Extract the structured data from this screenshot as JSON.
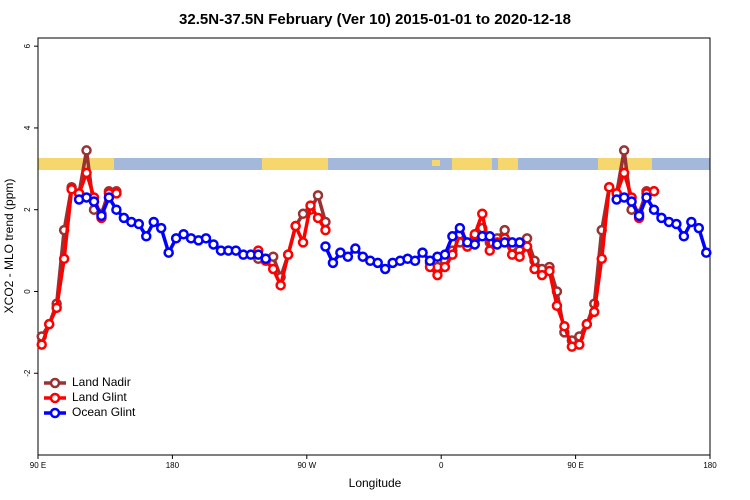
{
  "chart_data": {
    "type": "line",
    "title": "32.5N-37.5N February (Ver 10)   2015-01-01 to 2020-12-18",
    "xlabel": "Longitude",
    "ylabel": "XCO2 - MLO trend (ppm)",
    "x": [
      92.5,
      97.5,
      102.5,
      107.5,
      112.5,
      117.5,
      122.5,
      127.5,
      132.5,
      137.5,
      142.5,
      147.5,
      152.5,
      157.5,
      162.5,
      167.5,
      172.5,
      177.5,
      182.5,
      187.5,
      192.5,
      197.5,
      202.5,
      207.5,
      212.5,
      217.5,
      222.5,
      227.5,
      232.5,
      237.5,
      242.5,
      247.5,
      252.5,
      257.5,
      262.5,
      267.5,
      272.5,
      277.5,
      282.5,
      287.5,
      292.5,
      297.5,
      302.5,
      307.5,
      312.5,
      317.5,
      322.5,
      327.5,
      332.5,
      337.5,
      342.5,
      347.5,
      352.5,
      357.5,
      362.5,
      367.5,
      372.5,
      377.5,
      382.5,
      387.5,
      392.5,
      397.5,
      402.5,
      407.5,
      412.5,
      417.5,
      422.5,
      427.5,
      432.5,
      437.5,
      442.5,
      447.5,
      452.5,
      457.5,
      462.5,
      467.5,
      472.5,
      477.5,
      482.5,
      487.5,
      492.5,
      497.5,
      502.5,
      507.5,
      512.5,
      517.5,
      522.5,
      527.5,
      532.5,
      537.5
    ],
    "series": [
      {
        "name": "Land Nadir",
        "color": "#993333",
        "values": [
          -1.1,
          -0.8,
          -0.3,
          1.5,
          2.55,
          2.4,
          3.45,
          2.0,
          1.9,
          2.45,
          2.45,
          null,
          null,
          null,
          null,
          null,
          null,
          null,
          null,
          null,
          null,
          null,
          null,
          null,
          null,
          null,
          null,
          null,
          null,
          0.8,
          0.8,
          0.85,
          0.35,
          0.9,
          1.6,
          1.9,
          2.0,
          2.35,
          1.7,
          null,
          null,
          null,
          null,
          null,
          null,
          null,
          null,
          null,
          null,
          null,
          null,
          null,
          0.7,
          0.6,
          0.75,
          1.0,
          1.2,
          1.1,
          1.35,
          1.55,
          1.2,
          1.3,
          1.5,
          1.1,
          1.0,
          1.3,
          0.75,
          0.55,
          0.6,
          0.0,
          -1.0,
          -1.2,
          -1.1,
          -0.8,
          -0.3,
          1.5,
          2.55,
          2.4,
          3.45,
          2.0,
          1.9,
          2.45,
          2.45,
          null,
          null,
          null,
          null,
          null,
          null,
          null
        ]
      },
      {
        "name": "Land Glint",
        "color": "#ff0000",
        "values": [
          -1.3,
          -0.8,
          -0.4,
          0.8,
          2.5,
          2.4,
          2.9,
          2.3,
          1.8,
          2.4,
          2.4,
          null,
          null,
          null,
          null,
          null,
          null,
          null,
          null,
          null,
          null,
          null,
          null,
          null,
          null,
          null,
          null,
          null,
          null,
          1.0,
          0.75,
          0.55,
          0.15,
          0.9,
          1.6,
          1.2,
          2.1,
          1.8,
          1.5,
          null,
          null,
          null,
          null,
          null,
          null,
          null,
          null,
          null,
          null,
          null,
          null,
          null,
          0.6,
          0.4,
          0.6,
          0.9,
          1.4,
          1.1,
          1.4,
          1.9,
          1.0,
          1.2,
          1.3,
          0.9,
          0.85,
          1.1,
          0.55,
          0.4,
          0.5,
          -0.35,
          -0.85,
          -1.35,
          -1.3,
          -0.8,
          -0.5,
          0.8,
          2.55,
          2.4,
          2.9,
          2.3,
          1.8,
          2.4,
          2.45,
          null,
          null,
          null,
          null,
          null,
          null,
          null
        ]
      },
      {
        "name": "Ocean Glint",
        "color": "#0000ff",
        "values": [
          null,
          null,
          null,
          null,
          null,
          2.25,
          2.3,
          2.2,
          1.85,
          2.3,
          2.0,
          1.8,
          1.7,
          1.65,
          1.35,
          1.7,
          1.55,
          0.95,
          1.3,
          1.4,
          1.3,
          1.25,
          1.3,
          1.15,
          1.0,
          1.0,
          1.0,
          0.9,
          0.9,
          0.9,
          0.8,
          null,
          null,
          null,
          null,
          null,
          null,
          null,
          1.1,
          0.7,
          0.95,
          0.85,
          1.05,
          0.85,
          0.75,
          0.7,
          0.55,
          0.7,
          0.75,
          0.8,
          0.75,
          0.95,
          0.75,
          0.85,
          0.9,
          1.35,
          1.55,
          1.2,
          1.15,
          1.35,
          1.35,
          1.15,
          1.2,
          1.2,
          1.2,
          null,
          null,
          null,
          null,
          null,
          null,
          null,
          null,
          null,
          null,
          null,
          null,
          2.25,
          2.3,
          2.2,
          1.85,
          2.3,
          2.0,
          1.8,
          1.7,
          1.65,
          1.35,
          1.7,
          1.55,
          0.95
        ]
      }
    ],
    "xlim": [
      90,
      540
    ],
    "xticks": [
      {
        "value": 90,
        "label": "90 E"
      },
      180,
      {
        "value": 270,
        "label": "90 W"
      },
      {
        "value": 360,
        "label": "0"
      },
      {
        "value": 450,
        "label": "90 E"
      },
      {
        "value": 540,
        "label": "180"
      }
    ],
    "ylim": [
      -4,
      6.2
    ],
    "yticks": [
      -2,
      0,
      2,
      4,
      6
    ],
    "legend": "bottomleft"
  }
}
